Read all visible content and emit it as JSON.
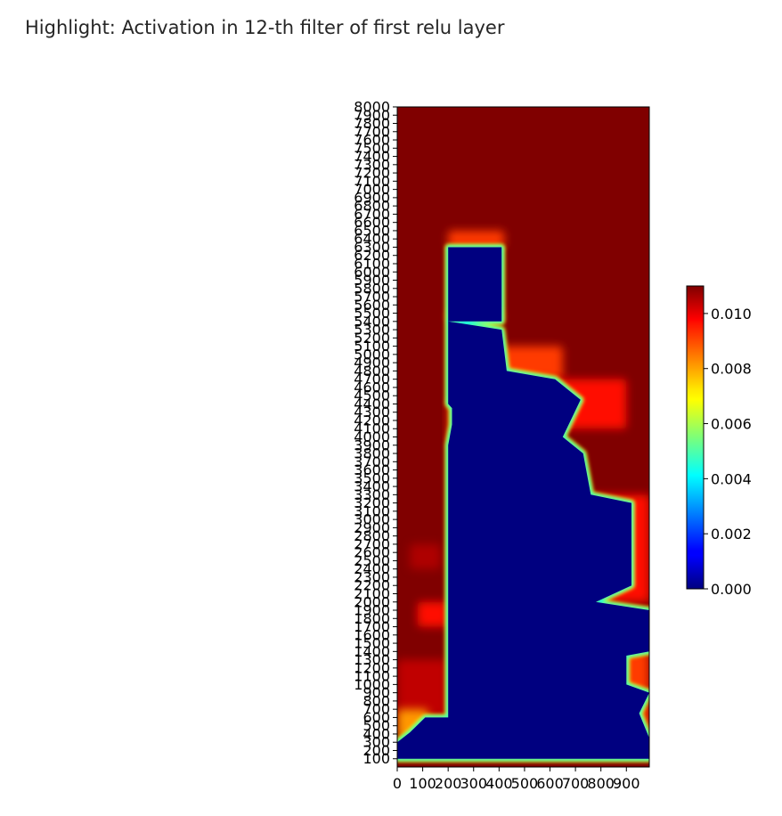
{
  "title": "Highlight: Activation in 12-th filter of first relu layer",
  "chart_data": {
    "type": "heatmap",
    "colormap": "jet",
    "x_ticks": [
      0,
      100,
      200,
      300,
      400,
      500,
      600,
      700,
      800,
      900
    ],
    "x_range": [
      0,
      990
    ],
    "y_ticks": [
      100,
      200,
      300,
      400,
      500,
      600,
      700,
      800,
      900,
      1000,
      1100,
      1200,
      1300,
      1400,
      1500,
      1600,
      1700,
      1800,
      1900,
      2000,
      2100,
      2200,
      2300,
      2400,
      2500,
      2600,
      2700,
      2800,
      2900,
      3000,
      3100,
      3200,
      3300,
      3400,
      3500,
      3600,
      3700,
      3800,
      3900,
      4000,
      4100,
      4200,
      4300,
      4400,
      4500,
      4600,
      4700,
      4800,
      4900,
      5000,
      5100,
      5200,
      5300,
      5400,
      5500,
      5600,
      5700,
      5800,
      5900,
      6000,
      6100,
      6200,
      6300,
      6400,
      6500,
      6600,
      6700,
      6800,
      6900,
      7000,
      7100,
      7200,
      7300,
      7400,
      7500,
      7600,
      7700,
      7800,
      7900,
      8000
    ],
    "y_range": [
      0,
      8000
    ],
    "colorbar": {
      "min": 0.0,
      "max": 0.011,
      "ticks": [
        "0.000",
        "0.002",
        "0.004",
        "0.006",
        "0.008",
        "0.010"
      ],
      "tick_values": [
        0.0,
        0.002,
        0.004,
        0.006,
        0.008,
        0.01
      ]
    },
    "regions": {
      "background_value": 0.011,
      "low_activation_value": 0.0,
      "low_region_outline": [
        [
          0,
          100
        ],
        [
          0,
          300
        ],
        [
          50,
          420
        ],
        [
          110,
          600
        ],
        [
          200,
          600
        ],
        [
          200,
          3900
        ],
        [
          215,
          4150
        ],
        [
          215,
          4350
        ],
        [
          200,
          4400
        ],
        [
          200,
          6300
        ],
        [
          410,
          6300
        ],
        [
          410,
          5400
        ],
        [
          200,
          5400
        ],
        [
          410,
          5300
        ],
        [
          430,
          4800
        ],
        [
          620,
          4700
        ],
        [
          720,
          4450
        ],
        [
          650,
          4000
        ],
        [
          730,
          3800
        ],
        [
          760,
          3300
        ],
        [
          920,
          3200
        ],
        [
          920,
          2200
        ],
        [
          780,
          2000
        ],
        [
          990,
          1900
        ],
        [
          990,
          1400
        ],
        [
          900,
          1350
        ],
        [
          900,
          1000
        ],
        [
          990,
          900
        ],
        [
          950,
          650
        ],
        [
          990,
          350
        ],
        [
          990,
          100
        ]
      ],
      "edge_bands": [
        {
          "y_from": 6300,
          "y_to": 6500,
          "x_from": 200,
          "x_to": 420,
          "peak": 0.009
        },
        {
          "y_from": 5400,
          "y_to": 5520,
          "x_from": 200,
          "x_to": 410,
          "peak": 0.009
        },
        {
          "y_from": 4700,
          "y_to": 5100,
          "x_from": 410,
          "x_to": 650,
          "peak": 0.009
        },
        {
          "y_from": 4100,
          "y_to": 4700,
          "x_from": 620,
          "x_to": 900,
          "peak": 0.0095
        },
        {
          "y_from": 3900,
          "y_to": 4450,
          "x_from": 200,
          "x_to": 250,
          "peak": 0.009
        },
        {
          "y_from": 2000,
          "y_to": 3300,
          "x_from": 760,
          "x_to": 990,
          "peak": 0.0095
        },
        {
          "y_from": 2400,
          "y_to": 2700,
          "x_from": 50,
          "x_to": 170,
          "peak": 0.0105
        },
        {
          "y_from": 1700,
          "y_to": 2000,
          "x_from": 80,
          "x_to": 200,
          "peak": 0.0095
        },
        {
          "y_from": 600,
          "y_to": 1300,
          "x_from": 0,
          "x_to": 200,
          "peak": 0.0103
        },
        {
          "y_from": 350,
          "y_to": 700,
          "x_from": 0,
          "x_to": 120,
          "peak": 0.008
        },
        {
          "y_from": 900,
          "y_to": 1400,
          "x_from": 880,
          "x_to": 990,
          "peak": 0.009
        },
        {
          "y_from": 400,
          "y_to": 800,
          "x_from": 930,
          "x_to": 990,
          "peak": 0.009
        }
      ]
    }
  }
}
